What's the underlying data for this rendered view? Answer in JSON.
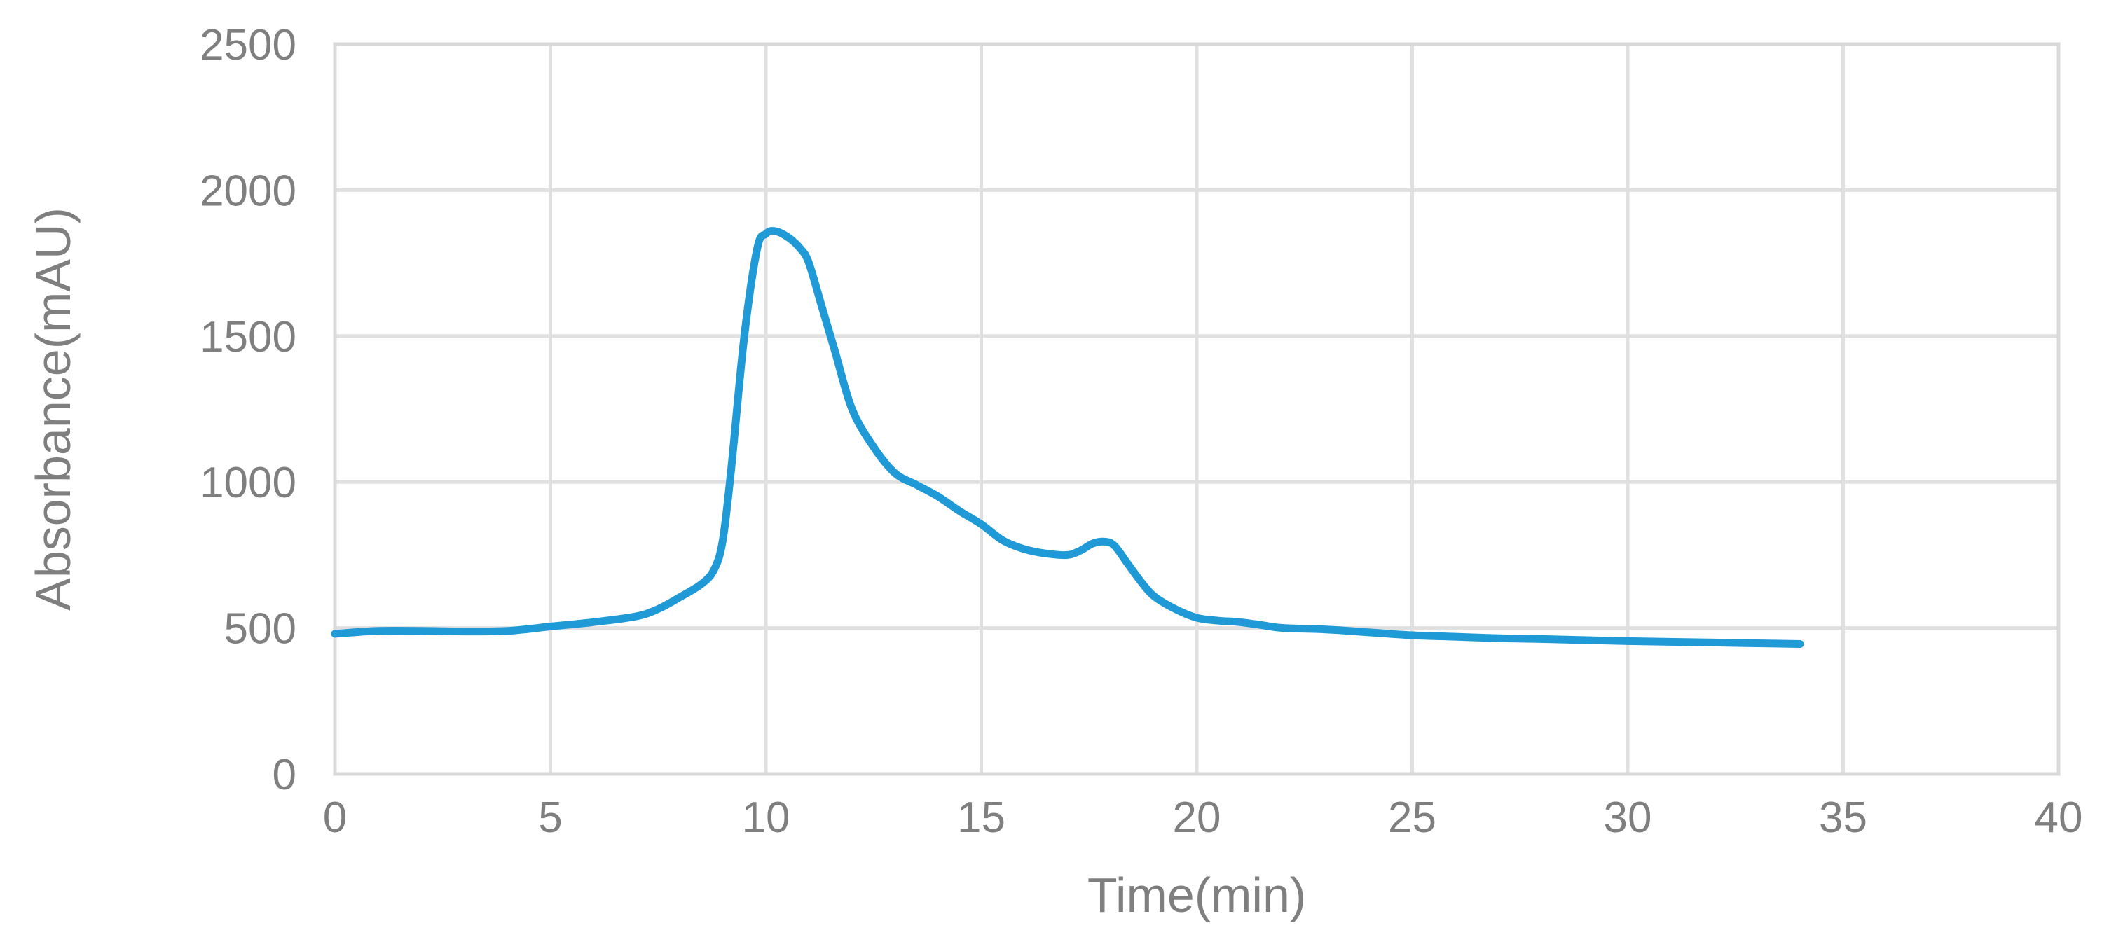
{
  "chart_data": {
    "type": "line",
    "title": "",
    "xlabel": "Time(min)",
    "ylabel": "Absorbance(mAU)",
    "xlim": [
      0,
      40
    ],
    "ylim": [
      0,
      2500
    ],
    "x_ticks": [
      0,
      5,
      10,
      15,
      20,
      25,
      30,
      35,
      40
    ],
    "y_ticks": [
      0,
      500,
      1000,
      1500,
      2000,
      2500
    ],
    "grid": true,
    "legend": "none",
    "series": [
      {
        "color": "#1f9ad6",
        "x": [
          0,
          1,
          2,
          3,
          4,
          5,
          6,
          7,
          7.5,
          8,
          8.5,
          8.8,
          9.0,
          9.2,
          9.5,
          9.8,
          10.0,
          10.2,
          10.5,
          10.8,
          11.0,
          11.3,
          11.6,
          12.0,
          12.5,
          13.0,
          13.5,
          14.0,
          14.5,
          15.0,
          15.5,
          16.0,
          16.5,
          17.0,
          17.3,
          17.6,
          17.9,
          18.1,
          18.4,
          18.7,
          19.0,
          19.5,
          20.0,
          20.5,
          21.0,
          21.5,
          22.0,
          23.0,
          24.0,
          25.0,
          26.0,
          27.0,
          28.0,
          30.0,
          32.0,
          34.0
        ],
        "y": [
          480,
          490,
          490,
          488,
          490,
          505,
          520,
          540,
          565,
          605,
          650,
          700,
          800,
          1050,
          1500,
          1800,
          1850,
          1860,
          1840,
          1800,
          1750,
          1600,
          1450,
          1250,
          1120,
          1030,
          990,
          950,
          900,
          855,
          800,
          770,
          755,
          750,
          765,
          790,
          795,
          780,
          720,
          660,
          610,
          565,
          535,
          525,
          520,
          510,
          500,
          495,
          485,
          475,
          470,
          465,
          462,
          455,
          450,
          445
        ]
      }
    ]
  }
}
